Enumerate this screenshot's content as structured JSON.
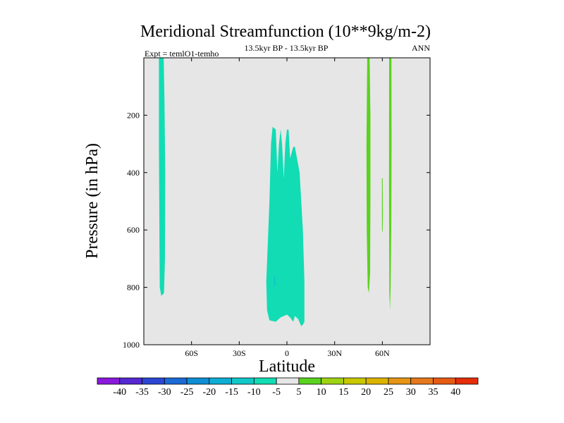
{
  "chart_data": {
    "type": "filled-contour",
    "title": "Meridional Streamfunction (10**9kg/m-2)",
    "subtitle_left": "Expt = temlO1-temho",
    "subtitle_center": "13.5kyr BP - 13.5kyr BP",
    "subtitle_right": "ANN",
    "xlabel": "Latitude",
    "ylabel": "Pressure (in hPa)",
    "xlim": [
      -90,
      90
    ],
    "ylim": [
      1000,
      0
    ],
    "x_ticks": [
      {
        "value": -60,
        "label": "60S"
      },
      {
        "value": -30,
        "label": "30S"
      },
      {
        "value": 0,
        "label": "0"
      },
      {
        "value": 30,
        "label": "30N"
      },
      {
        "value": 60,
        "label": "60N"
      }
    ],
    "y_ticks": [
      {
        "value": 200,
        "label": "200"
      },
      {
        "value": 400,
        "label": "400"
      },
      {
        "value": 600,
        "label": "600"
      },
      {
        "value": 800,
        "label": "800"
      },
      {
        "value": 1000,
        "label": "1000"
      }
    ],
    "background_color": "#e6e6e6",
    "colorbar": {
      "levels": [
        "-40",
        "-35",
        "-30",
        "-25",
        "-20",
        "-15",
        "-10",
        "-5",
        "5",
        "10",
        "15",
        "20",
        "25",
        "30",
        "35",
        "40"
      ],
      "colors": [
        "#8a19dc",
        "#5528d2",
        "#2c46d4",
        "#1b6ad6",
        "#0e8ed4",
        "#0eaed4",
        "#12c8c8",
        "#12dcb4",
        "#e6e6e6",
        "#5ad21e",
        "#a0d214",
        "#c8c800",
        "#dcb400",
        "#e69614",
        "#e6781e",
        "#e65a14",
        "#e62d0a"
      ]
    },
    "regions": [
      {
        "name": "southern-high-lat-cell",
        "class": "-10 to -5",
        "color": "#12dcb4",
        "points": [
          [
            -80.5,
            0
          ],
          [
            -77.5,
            0
          ],
          [
            -77.0,
            150
          ],
          [
            -76.5,
            400
          ],
          [
            -76.7,
            700
          ],
          [
            -77.3,
            820
          ],
          [
            -79.0,
            830
          ],
          [
            -80.0,
            800
          ],
          [
            -80.2,
            600
          ],
          [
            -80.5,
            300
          ]
        ]
      },
      {
        "name": "tropical-cell",
        "class": "-10 to -5",
        "color": "#12dcb4",
        "points": [
          [
            -13,
            780
          ],
          [
            -11,
            500
          ],
          [
            -10,
            300
          ],
          [
            -9,
            240
          ],
          [
            -7,
            250
          ],
          [
            -6,
            400
          ],
          [
            -5,
            300
          ],
          [
            -4,
            250
          ],
          [
            -3,
            305
          ],
          [
            -2,
            420
          ],
          [
            -1,
            300
          ],
          [
            0,
            250
          ],
          [
            1,
            250
          ],
          [
            2,
            350
          ],
          [
            4,
            310
          ],
          [
            5,
            310
          ],
          [
            6,
            340
          ],
          [
            8,
            400
          ],
          [
            9,
            500
          ],
          [
            10,
            600
          ],
          [
            11,
            780
          ],
          [
            11,
            920
          ],
          [
            10,
            930
          ],
          [
            9,
            935
          ],
          [
            7,
            910
          ],
          [
            5,
            900
          ],
          [
            4,
            920
          ],
          [
            2,
            905
          ],
          [
            0,
            895
          ],
          [
            -4,
            905
          ],
          [
            -7,
            920
          ],
          [
            -11,
            915
          ],
          [
            -12.5,
            880
          ]
        ]
      },
      {
        "name": "tropical-cell-core",
        "class": "-15 to -10",
        "color": "#12c8c8",
        "points": [
          [
            -8.5,
            760
          ],
          [
            -7.5,
            760
          ],
          [
            -7,
            790
          ],
          [
            -8,
            800
          ]
        ]
      },
      {
        "name": "northern-cell-a",
        "class": "5 to 10",
        "color": "#5ad21e",
        "points": [
          [
            50.5,
            0
          ],
          [
            52.0,
            0
          ],
          [
            52.5,
            200
          ],
          [
            52.5,
            500
          ],
          [
            52.3,
            750
          ],
          [
            51.5,
            820
          ],
          [
            50.8,
            800
          ],
          [
            50.2,
            600
          ],
          [
            50.0,
            300
          ]
        ]
      },
      {
        "name": "northern-cell-b",
        "class": "5 to 10",
        "color": "#5ad21e",
        "points": [
          [
            64.3,
            0
          ],
          [
            65.7,
            0
          ],
          [
            65.8,
            300
          ],
          [
            65.6,
            600
          ],
          [
            65.2,
            800
          ],
          [
            64.8,
            880
          ],
          [
            64.4,
            820
          ],
          [
            64.2,
            500
          ]
        ]
      },
      {
        "name": "northern-cell-c",
        "class": "5 to 10",
        "color": "#5ad21e",
        "points": [
          [
            59.7,
            420
          ],
          [
            60.2,
            420
          ],
          [
            60.4,
            550
          ],
          [
            60.2,
            610
          ],
          [
            59.8,
            600
          ]
        ]
      }
    ]
  }
}
